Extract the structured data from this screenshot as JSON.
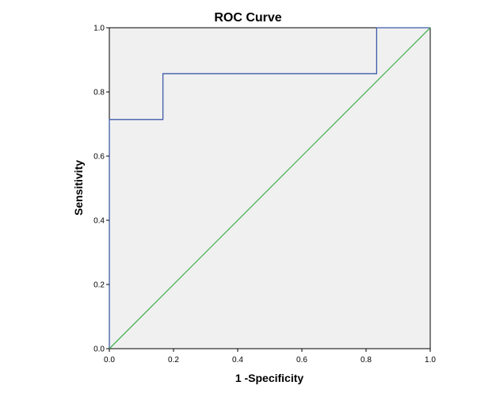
{
  "chart_data": {
    "type": "line",
    "title": "ROC Curve",
    "xlabel": "1 -Specificity",
    "ylabel": "Sensitivity",
    "xlim": [
      0,
      1
    ],
    "ylim": [
      0,
      1
    ],
    "x_ticks": [
      "0.0",
      "0.2",
      "0.4",
      "0.6",
      "0.8",
      "1.0"
    ],
    "y_ticks": [
      "0.0",
      "0.2",
      "0.4",
      "0.6",
      "0.8",
      "1.0"
    ],
    "grid": false,
    "legend": "none",
    "plot_background": "#f0f0f0",
    "series": [
      {
        "color": "#3f5ba9",
        "x": [
          0,
          0,
          0.167,
          0.167,
          0.833,
          0.833,
          1.0
        ],
        "y": [
          0,
          0.714,
          0.714,
          0.857,
          0.857,
          1.0,
          1.0
        ]
      },
      {
        "color": "#49b255",
        "x": [
          0,
          1
        ],
        "y": [
          0,
          1
        ]
      }
    ]
  }
}
